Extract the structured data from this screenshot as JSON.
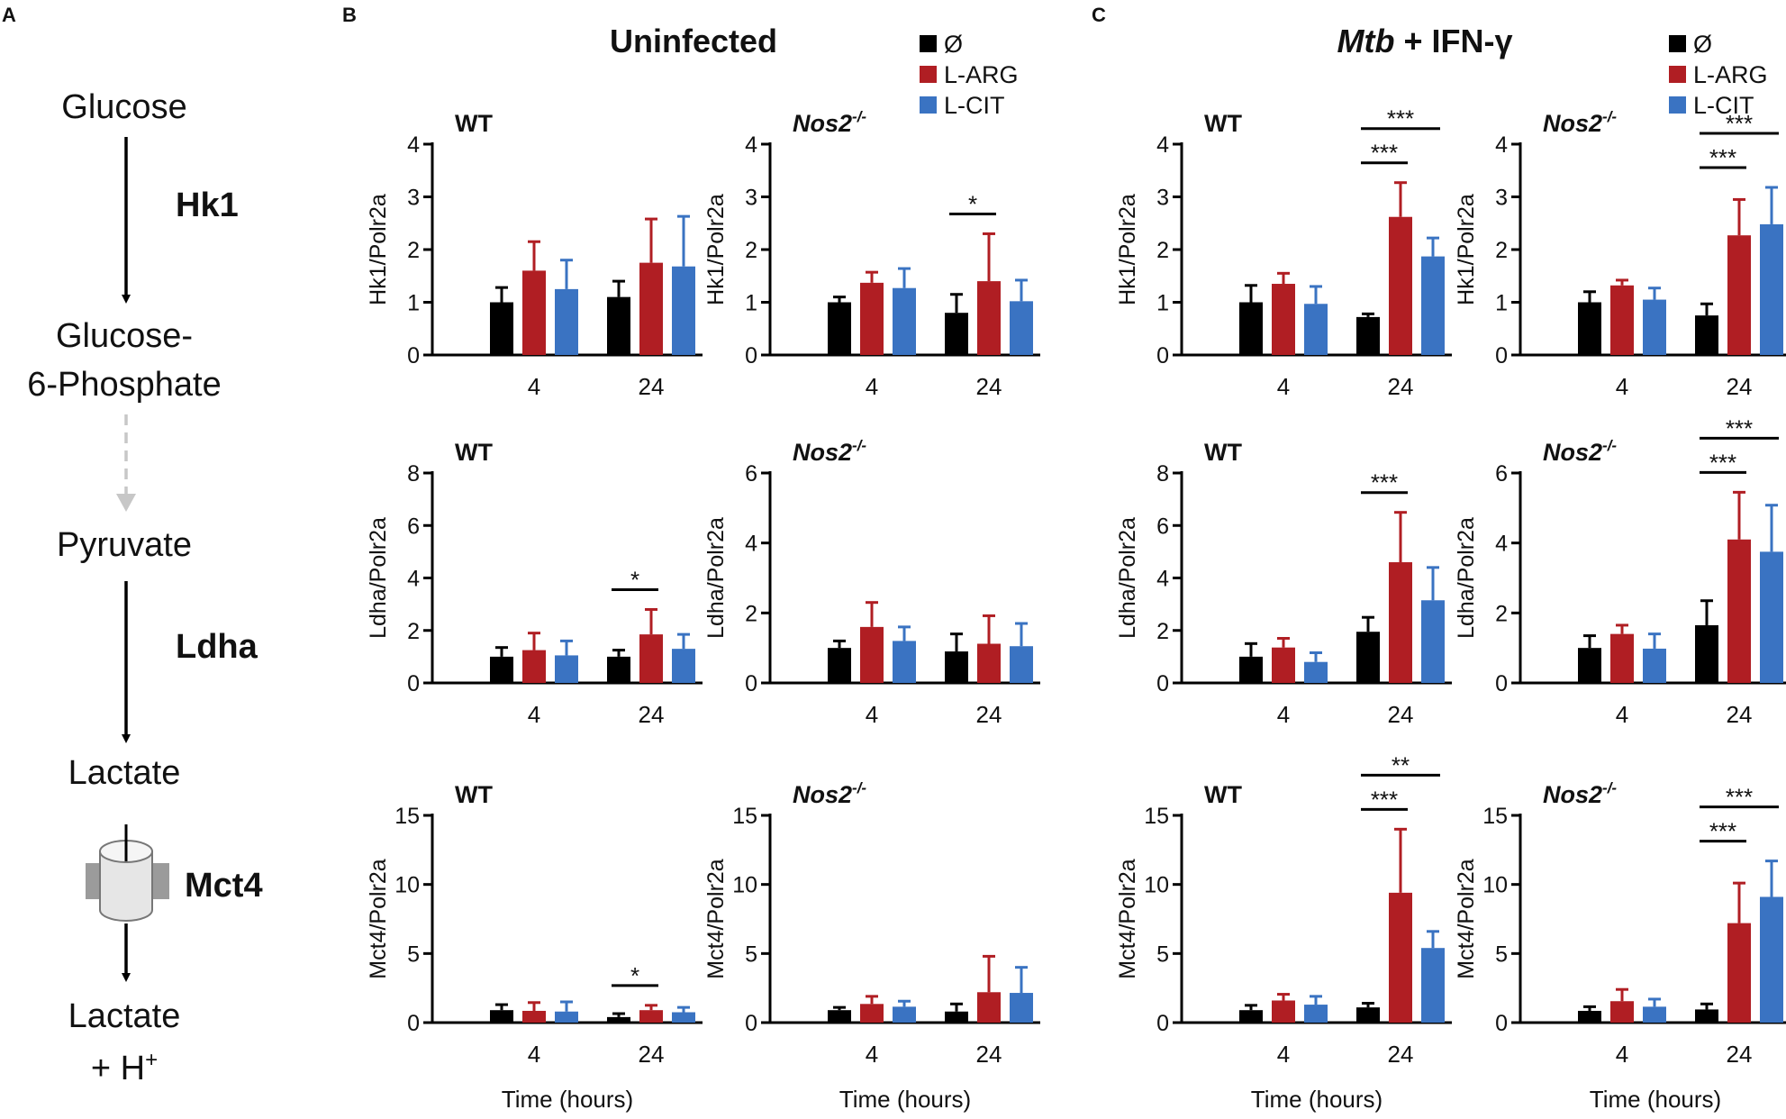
{
  "panel_labels": [
    "A",
    "B",
    "C"
  ],
  "pathway": {
    "metabolites": [
      "Glucose",
      "Glucose-",
      "6-Phosphate",
      "Pyruvate",
      "Lactate",
      "Lactate",
      "+ H"
    ],
    "proton_superscript": "+",
    "enzymes": [
      "Hk1",
      "Ldha",
      "Mct4"
    ]
  },
  "groups": {
    "B": {
      "title": "Uninfected"
    },
    "C": {
      "title_italic": "Mtb",
      "title_rest": " + IFN-γ"
    }
  },
  "legend": [
    {
      "label": "Ø",
      "color": "#000000"
    },
    {
      "label": "L-ARG",
      "color": "#b01e23"
    },
    {
      "label": "L-CIT",
      "color": "#3a73c2"
    }
  ],
  "colors": {
    "ctrl": "#000000",
    "larg": "#b01e23",
    "lcit": "#3a73c2",
    "axis": "#000000",
    "dashed_arrow": "#c7c7c7"
  },
  "x_axis_title": "Time (hours)",
  "genotype_labels": {
    "wt": "WT",
    "nos2": "Nos2",
    "nos2_sup": "-/-"
  },
  "chart_data": [
    {
      "type": "bar",
      "group": "Uninfected",
      "genotype": "WT",
      "ylabel": "Hk1/Polr2a",
      "ylim": [
        0,
        4
      ],
      "yticks": [
        0,
        1,
        2,
        3,
        4
      ],
      "categories": [
        "4",
        "24"
      ],
      "xlabel": "Time (hours)",
      "series": [
        {
          "name": "Ø",
          "values": [
            1.0,
            1.1
          ],
          "errors": [
            0.28,
            0.3
          ]
        },
        {
          "name": "L-ARG",
          "values": [
            1.6,
            1.75
          ],
          "errors": [
            0.55,
            0.83
          ]
        },
        {
          "name": "L-CIT",
          "values": [
            1.25,
            1.68
          ],
          "errors": [
            0.55,
            0.95
          ]
        }
      ],
      "annotations": []
    },
    {
      "type": "bar",
      "group": "Uninfected",
      "genotype": "Nos2-/-",
      "ylabel": "Hk1/Polr2a",
      "ylim": [
        0,
        4
      ],
      "yticks": [
        0,
        1,
        2,
        3,
        4
      ],
      "categories": [
        "4",
        "24"
      ],
      "xlabel": "Time (hours)",
      "series": [
        {
          "name": "Ø",
          "values": [
            1.0,
            0.8
          ],
          "errors": [
            0.1,
            0.35
          ]
        },
        {
          "name": "L-ARG",
          "values": [
            1.37,
            1.4
          ],
          "errors": [
            0.2,
            0.9
          ]
        },
        {
          "name": "L-CIT",
          "values": [
            1.27,
            1.02
          ],
          "errors": [
            0.37,
            0.4
          ]
        }
      ],
      "annotations": [
        {
          "label": "*",
          "category": "24",
          "from": "Ø",
          "to": "L-ARG"
        }
      ]
    },
    {
      "type": "bar",
      "group": "Uninfected",
      "genotype": "WT",
      "ylabel": "Ldha/Polr2a",
      "ylim": [
        0,
        8
      ],
      "yticks": [
        0,
        2,
        4,
        6,
        8
      ],
      "categories": [
        "4",
        "24"
      ],
      "xlabel": "Time (hours)",
      "series": [
        {
          "name": "Ø",
          "values": [
            1.0,
            1.0
          ],
          "errors": [
            0.35,
            0.25
          ]
        },
        {
          "name": "L-ARG",
          "values": [
            1.25,
            1.85
          ],
          "errors": [
            0.65,
            0.95
          ]
        },
        {
          "name": "L-CIT",
          "values": [
            1.05,
            1.3
          ],
          "errors": [
            0.55,
            0.55
          ]
        }
      ],
      "annotations": [
        {
          "label": "*",
          "category": "24",
          "from": "Ø",
          "to": "L-ARG"
        }
      ]
    },
    {
      "type": "bar",
      "group": "Uninfected",
      "genotype": "Nos2-/-",
      "ylabel": "Ldha/Polr2a",
      "ylim": [
        0,
        6
      ],
      "yticks": [
        0,
        2,
        4,
        6
      ],
      "categories": [
        "4",
        "24"
      ],
      "xlabel": "Time (hours)",
      "series": [
        {
          "name": "Ø",
          "values": [
            1.0,
            0.9
          ],
          "errors": [
            0.2,
            0.5
          ]
        },
        {
          "name": "L-ARG",
          "values": [
            1.6,
            1.12
          ],
          "errors": [
            0.7,
            0.8
          ]
        },
        {
          "name": "L-CIT",
          "values": [
            1.2,
            1.05
          ],
          "errors": [
            0.4,
            0.65
          ]
        }
      ],
      "annotations": []
    },
    {
      "type": "bar",
      "group": "Uninfected",
      "genotype": "WT",
      "ylabel": "Mct4/Polr2a",
      "ylim": [
        0,
        15
      ],
      "yticks": [
        0,
        5,
        10,
        15
      ],
      "categories": [
        "4",
        "24"
      ],
      "xlabel": "Time (hours)",
      "series": [
        {
          "name": "Ø",
          "values": [
            0.9,
            0.4
          ],
          "errors": [
            0.4,
            0.25
          ]
        },
        {
          "name": "L-ARG",
          "values": [
            0.85,
            0.9
          ],
          "errors": [
            0.6,
            0.35
          ]
        },
        {
          "name": "L-CIT",
          "values": [
            0.8,
            0.75
          ],
          "errors": [
            0.7,
            0.35
          ]
        }
      ],
      "annotations": [
        {
          "label": "*",
          "category": "24",
          "from": "Ø",
          "to": "L-ARG"
        }
      ]
    },
    {
      "type": "bar",
      "group": "Uninfected",
      "genotype": "Nos2-/-",
      "ylabel": "Mct4/Polr2a",
      "ylim": [
        0,
        15
      ],
      "yticks": [
        0,
        5,
        10,
        15
      ],
      "categories": [
        "4",
        "24"
      ],
      "xlabel": "Time (hours)",
      "series": [
        {
          "name": "Ø",
          "values": [
            0.9,
            0.8
          ],
          "errors": [
            0.2,
            0.55
          ]
        },
        {
          "name": "L-ARG",
          "values": [
            1.35,
            2.2
          ],
          "errors": [
            0.55,
            2.6
          ]
        },
        {
          "name": "L-CIT",
          "values": [
            1.15,
            2.15
          ],
          "errors": [
            0.4,
            1.85
          ]
        }
      ],
      "annotations": []
    },
    {
      "type": "bar",
      "group": "Mtb + IFN-γ",
      "genotype": "WT",
      "ylabel": "Hk1/Polr2a",
      "ylim": [
        0,
        4
      ],
      "yticks": [
        0,
        1,
        2,
        3,
        4
      ],
      "categories": [
        "4",
        "24"
      ],
      "xlabel": "Time (hours)",
      "series": [
        {
          "name": "Ø",
          "values": [
            1.0,
            0.72
          ],
          "errors": [
            0.32,
            0.06
          ]
        },
        {
          "name": "L-ARG",
          "values": [
            1.35,
            2.62
          ],
          "errors": [
            0.2,
            0.65
          ]
        },
        {
          "name": "L-CIT",
          "values": [
            0.97,
            1.87
          ],
          "errors": [
            0.33,
            0.35
          ]
        }
      ],
      "annotations": [
        {
          "label": "***",
          "category": "24",
          "from": "Ø",
          "to": "L-ARG"
        },
        {
          "label": "***",
          "category": "24",
          "from": "Ø",
          "to": "L-CIT"
        }
      ]
    },
    {
      "type": "bar",
      "group": "Mtb + IFN-γ",
      "genotype": "Nos2-/-",
      "ylabel": "Hk1/Polr2a",
      "ylim": [
        0,
        4
      ],
      "yticks": [
        0,
        1,
        2,
        3,
        4
      ],
      "categories": [
        "4",
        "24"
      ],
      "xlabel": "Time (hours)",
      "series": [
        {
          "name": "Ø",
          "values": [
            1.0,
            0.75
          ],
          "errors": [
            0.2,
            0.22
          ]
        },
        {
          "name": "L-ARG",
          "values": [
            1.32,
            2.27
          ],
          "errors": [
            0.1,
            0.68
          ]
        },
        {
          "name": "L-CIT",
          "values": [
            1.05,
            2.48
          ],
          "errors": [
            0.22,
            0.7
          ]
        }
      ],
      "annotations": [
        {
          "label": "***",
          "category": "24",
          "from": "Ø",
          "to": "L-ARG"
        },
        {
          "label": "***",
          "category": "24",
          "from": "Ø",
          "to": "L-CIT"
        }
      ]
    },
    {
      "type": "bar",
      "group": "Mtb + IFN-γ",
      "genotype": "WT",
      "ylabel": "Ldha/Polr2a",
      "ylim": [
        0,
        8
      ],
      "yticks": [
        0,
        2,
        4,
        6,
        8
      ],
      "categories": [
        "4",
        "24"
      ],
      "xlabel": "Time (hours)",
      "series": [
        {
          "name": "Ø",
          "values": [
            1.0,
            1.95
          ],
          "errors": [
            0.5,
            0.55
          ]
        },
        {
          "name": "L-ARG",
          "values": [
            1.35,
            4.6
          ],
          "errors": [
            0.35,
            1.9
          ]
        },
        {
          "name": "L-CIT",
          "values": [
            0.8,
            3.15
          ],
          "errors": [
            0.35,
            1.25
          ]
        }
      ],
      "annotations": [
        {
          "label": "***",
          "category": "24",
          "from": "Ø",
          "to": "L-ARG"
        }
      ]
    },
    {
      "type": "bar",
      "group": "Mtb + IFN-γ",
      "genotype": "Nos2-/-",
      "ylabel": "Ldha/Polr2a",
      "ylim": [
        0,
        6
      ],
      "yticks": [
        0,
        2,
        4,
        6
      ],
      "categories": [
        "4",
        "24"
      ],
      "xlabel": "Time (hours)",
      "series": [
        {
          "name": "Ø",
          "values": [
            1.0,
            1.65
          ],
          "errors": [
            0.35,
            0.7
          ]
        },
        {
          "name": "L-ARG",
          "values": [
            1.4,
            4.1
          ],
          "errors": [
            0.25,
            1.35
          ]
        },
        {
          "name": "L-CIT",
          "values": [
            0.98,
            3.75
          ],
          "errors": [
            0.42,
            1.33
          ]
        }
      ],
      "annotations": [
        {
          "label": "***",
          "category": "24",
          "from": "Ø",
          "to": "L-ARG"
        },
        {
          "label": "***",
          "category": "24",
          "from": "Ø",
          "to": "L-CIT"
        }
      ]
    },
    {
      "type": "bar",
      "group": "Mtb + IFN-γ",
      "genotype": "WT",
      "ylabel": "Mct4/Polr2a",
      "ylim": [
        0,
        15
      ],
      "yticks": [
        0,
        5,
        10,
        15
      ],
      "categories": [
        "4",
        "24"
      ],
      "xlabel": "Time (hours)",
      "series": [
        {
          "name": "Ø",
          "values": [
            0.9,
            1.1
          ],
          "errors": [
            0.35,
            0.3
          ]
        },
        {
          "name": "L-ARG",
          "values": [
            1.6,
            9.4
          ],
          "errors": [
            0.45,
            4.6
          ]
        },
        {
          "name": "L-CIT",
          "values": [
            1.3,
            5.4
          ],
          "errors": [
            0.6,
            1.2
          ]
        }
      ],
      "annotations": [
        {
          "label": "***",
          "category": "24",
          "from": "Ø",
          "to": "L-ARG"
        },
        {
          "label": "**",
          "category": "24",
          "from": "Ø",
          "to": "L-CIT"
        }
      ]
    },
    {
      "type": "bar",
      "group": "Mtb + IFN-γ",
      "genotype": "Nos2-/-",
      "ylabel": "Mct4/Polr2a",
      "ylim": [
        0,
        15
      ],
      "yticks": [
        0,
        5,
        10,
        15
      ],
      "categories": [
        "4",
        "24"
      ],
      "xlabel": "Time (hours)",
      "series": [
        {
          "name": "Ø",
          "values": [
            0.85,
            0.95
          ],
          "errors": [
            0.3,
            0.4
          ]
        },
        {
          "name": "L-ARG",
          "values": [
            1.55,
            7.2
          ],
          "errors": [
            0.85,
            2.9
          ]
        },
        {
          "name": "L-CIT",
          "values": [
            1.15,
            9.1
          ],
          "errors": [
            0.55,
            2.6
          ]
        }
      ],
      "annotations": [
        {
          "label": "***",
          "category": "24",
          "from": "Ø",
          "to": "L-ARG"
        },
        {
          "label": "***",
          "category": "24",
          "from": "Ø",
          "to": "L-CIT"
        }
      ]
    }
  ]
}
